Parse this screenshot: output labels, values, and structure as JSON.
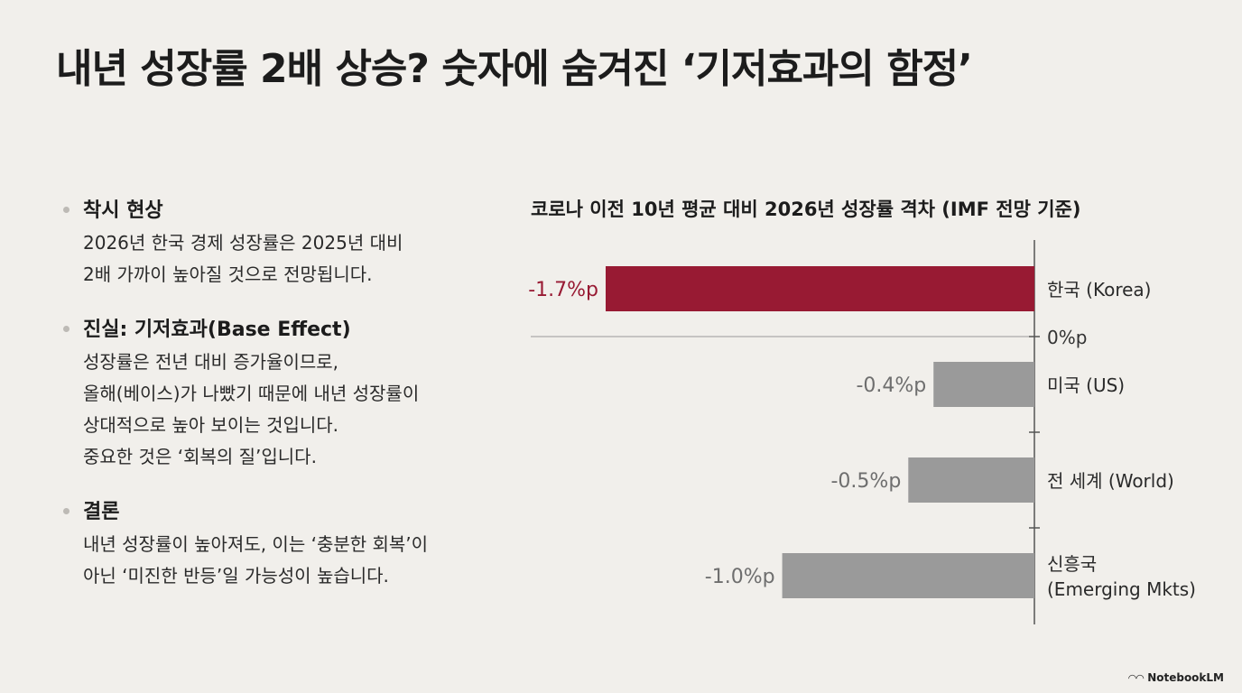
{
  "title": "내년 성장률 2배 상승? 숫자에 숨겨진 ‘기저효과의 함정’",
  "bullets": [
    {
      "heading": "착시 현상",
      "lines": [
        "2026년 한국 경제 성장률은 2025년 대비",
        "2배 가까이 높아질 것으로 전망됩니다."
      ]
    },
    {
      "heading": "진실: 기저효과(Base Effect)",
      "lines": [
        "성장률은 전년 대비 증가율이므로,",
        "올해(베이스)가 나빴기 때문에 내년 성장률이",
        "상대적으로 높아 보이는 것입니다.",
        "중요한 것은 ‘회복의 질’입니다."
      ]
    },
    {
      "heading": "결론",
      "lines": [
        "내년 성장률이 높아져도, 이는 ‘충분한 회복’이",
        "아닌 ‘미진한 반등’일 가능성이 높습니다."
      ]
    }
  ],
  "chart_data": {
    "type": "bar",
    "orientation": "horizontal",
    "title": "코로나 이전 10년 평균 대비 2026년 성장률 격차 (IMF 전망 기준)",
    "zero_label": "0%p",
    "unit": "%p",
    "categories": [
      [
        "한국 (Korea)"
      ],
      [
        "미국 (US)"
      ],
      [
        "전 세계 (World)"
      ],
      [
        "신흥국",
        "(Emerging Mkts)"
      ]
    ],
    "values": [
      -1.7,
      -0.4,
      -0.5,
      -1.0
    ],
    "value_labels": [
      "-1.7%p",
      "-0.4%p",
      "-0.5%p",
      "-1.0%p"
    ],
    "highlight_index": 0,
    "xlim": [
      -1.7,
      0
    ],
    "colors": {
      "highlight": "#981a33",
      "default": "#9a9a9a",
      "label_default": "#6e6e6e",
      "axis": "#555555"
    }
  },
  "logo": {
    "text": "NotebookLM",
    "icon": "notebooklm-icon"
  }
}
